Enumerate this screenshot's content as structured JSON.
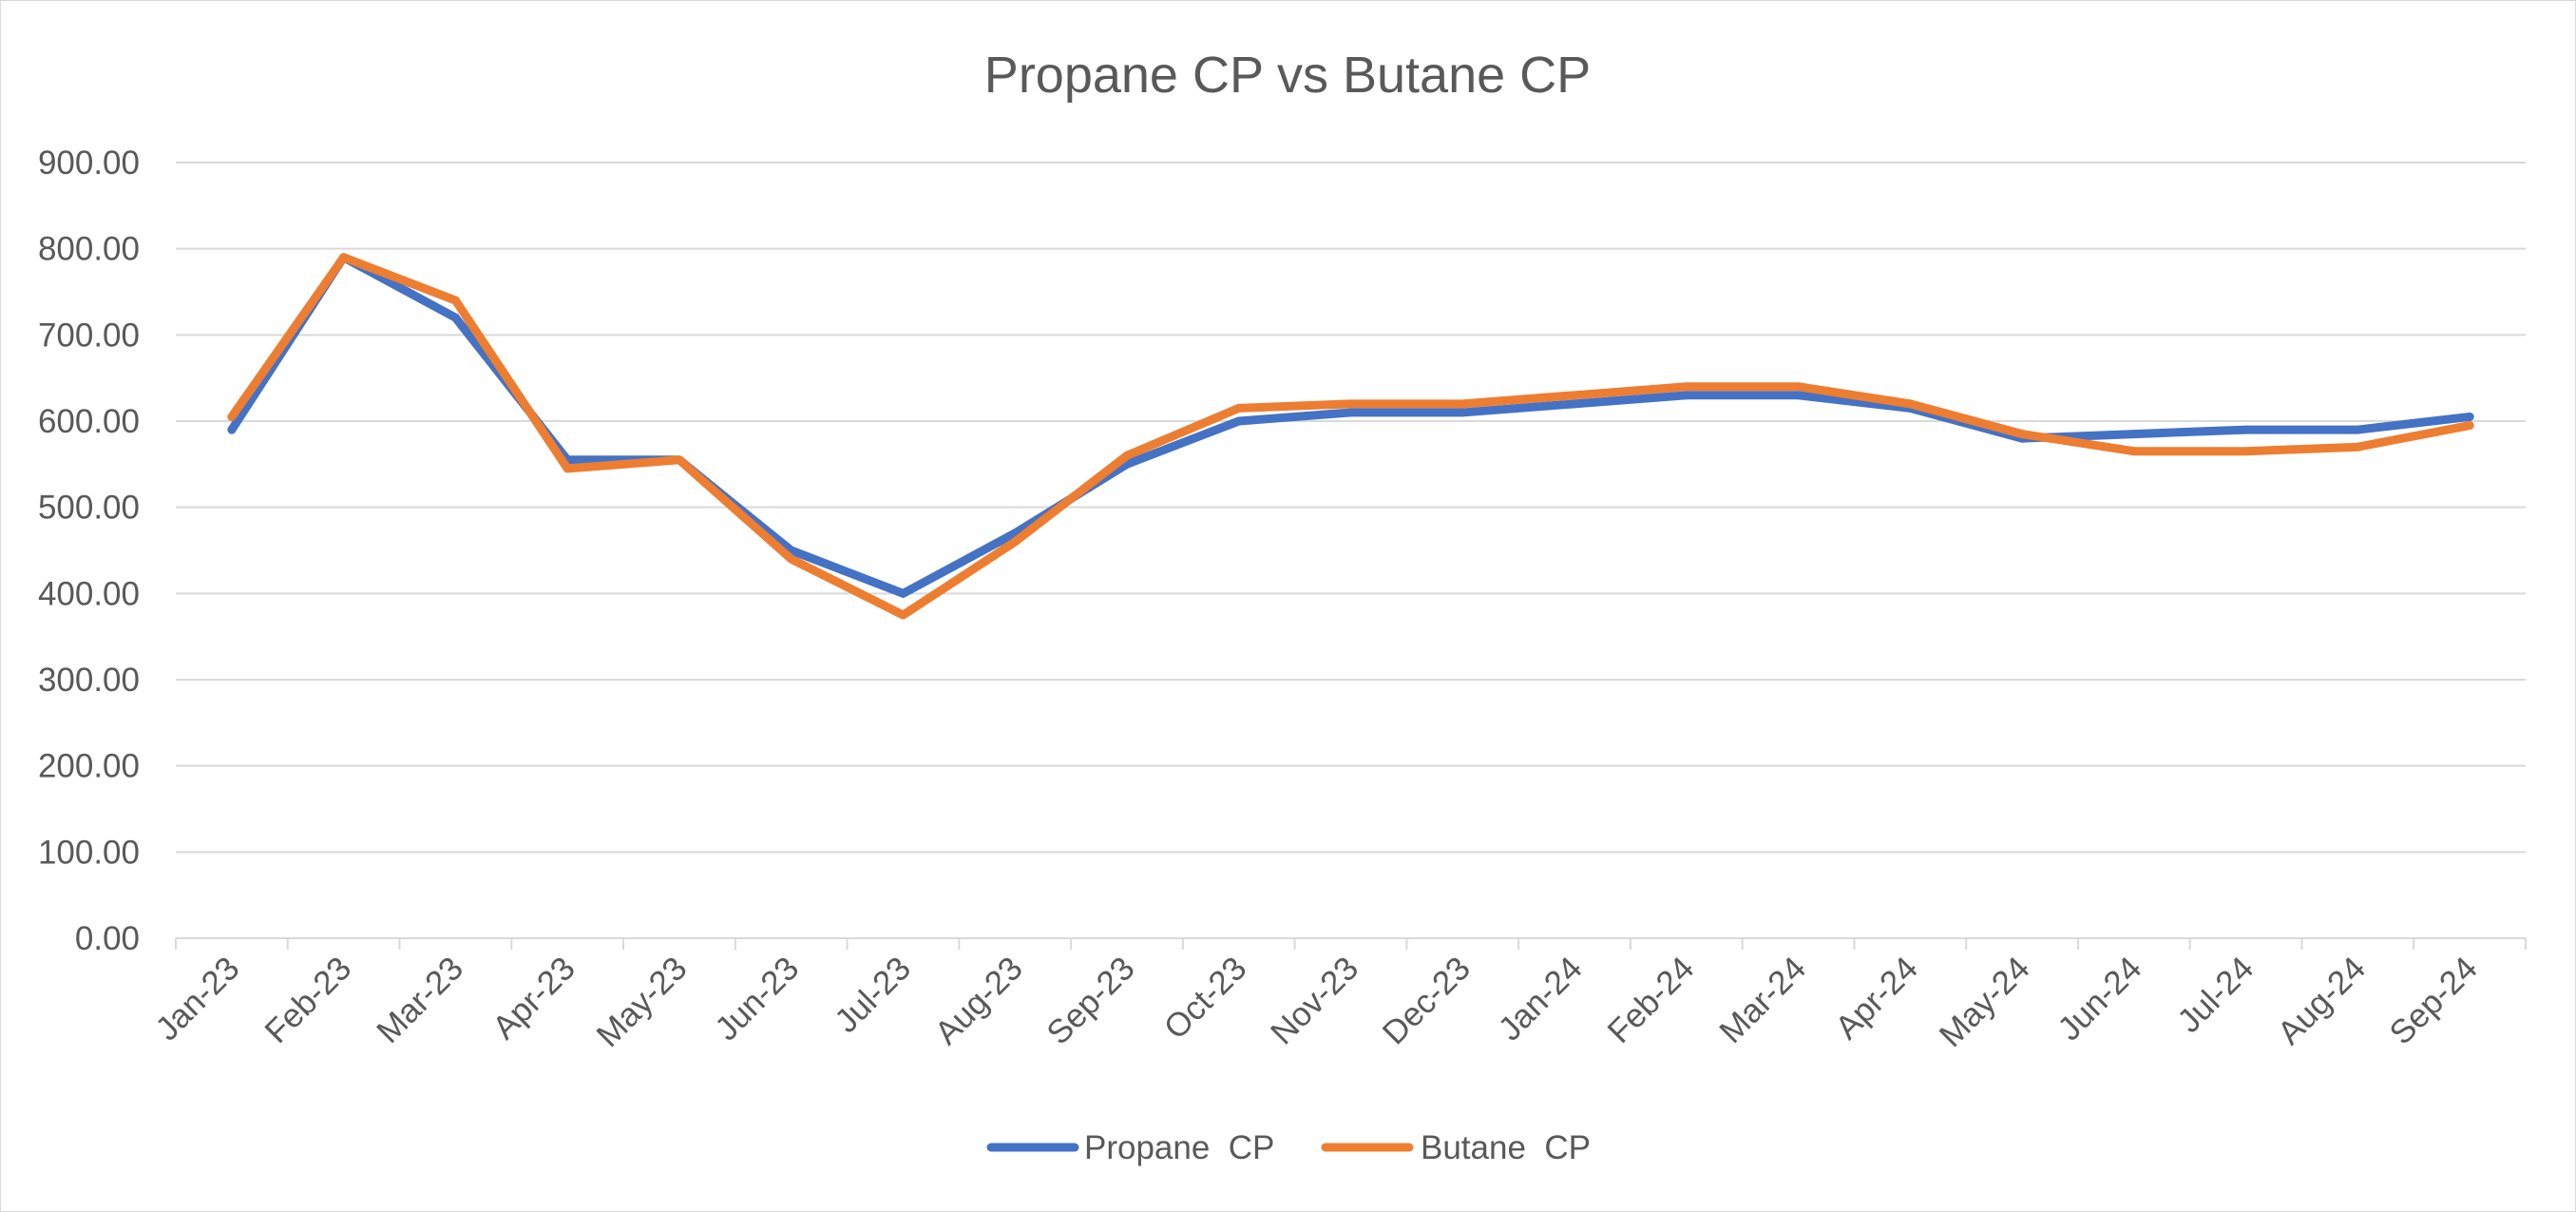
{
  "chart_data": {
    "type": "line",
    "title": "Propane CP vs Butane CP",
    "xlabel": "",
    "ylabel": "",
    "categories": [
      "Jan-23",
      "Feb-23",
      "Mar-23",
      "Apr-23",
      "May-23",
      "Jun-23",
      "Jul-23",
      "Aug-23",
      "Sep-23",
      "Oct-23",
      "Nov-23",
      "Dec-23",
      "Jan-24",
      "Feb-24",
      "Mar-24",
      "Apr-24",
      "May-24",
      "Jun-24",
      "Jul-24",
      "Aug-24",
      "Sep-24"
    ],
    "series": [
      {
        "name": "Propane  CP",
        "color": "#4472C4",
        "values": [
          590,
          790,
          720,
          555,
          555,
          450,
          400,
          470,
          550,
          600,
          610,
          610,
          620,
          630,
          630,
          615,
          580,
          585,
          590,
          590,
          605
        ]
      },
      {
        "name": "Butane  CP",
        "color": "#ED7D31",
        "values": [
          605,
          790,
          740,
          545,
          555,
          440,
          375,
          460,
          560,
          615,
          620,
          620,
          630,
          640,
          640,
          620,
          585,
          565,
          565,
          570,
          595
        ]
      }
    ],
    "ylim": [
      0,
      900
    ],
    "yticks": [
      "0.00",
      "100.00",
      "200.00",
      "300.00",
      "400.00",
      "500.00",
      "600.00",
      "700.00",
      "800.00",
      "900.00"
    ],
    "grid": true,
    "legend_position": "bottom"
  }
}
